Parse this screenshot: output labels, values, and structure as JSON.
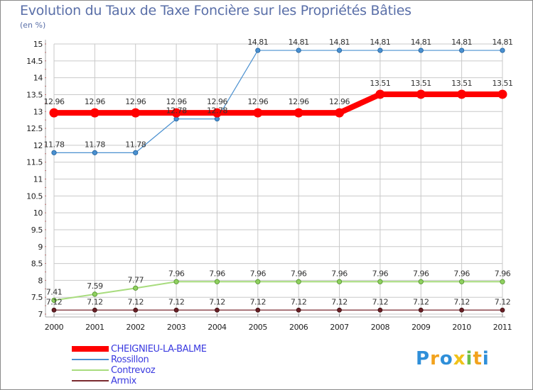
{
  "title": "Evolution du Taux de Taxe Foncière sur les Propriétés Bâties",
  "unit": "(en %)",
  "logo": {
    "text": "Proxiti",
    "colors": [
      "#2f8fd9",
      "#f2a21d",
      "#2f8fd9",
      "#f0c21a",
      "#6cc04a",
      "#f2a21d",
      "#2f8fd9"
    ]
  },
  "colors": {
    "grid": "#c9c9c9",
    "axis": "#aaaaaa",
    "minor_tick": "#d64646"
  },
  "chart_data": {
    "type": "line",
    "title": "Evolution du Taux de Taxe Foncière sur les Propriétés Bâties",
    "ylabel": "(en %)",
    "xlabel": "",
    "x": [
      "2000",
      "2001",
      "2002",
      "2003",
      "2004",
      "2005",
      "2006",
      "2007",
      "2008",
      "2009",
      "2010",
      "2011"
    ],
    "ylim": [
      7,
      15
    ],
    "yticks": [
      "7",
      "7.5",
      "8",
      "8.5",
      "9",
      "9.5",
      "10",
      "10.5",
      "11",
      "11.5",
      "12",
      "12.5",
      "13",
      "13.5",
      "14",
      "14.5",
      "15"
    ],
    "grid": true,
    "legend_position": "bottom-left",
    "series": [
      {
        "name": "CHEIGNIEU-LA-BALME",
        "color": "#ff0000",
        "values": [
          12.96,
          12.96,
          12.96,
          12.96,
          12.96,
          12.96,
          12.96,
          12.96,
          13.51,
          13.51,
          13.51,
          13.51
        ],
        "labels": [
          "12.96",
          "12.96",
          "12.96",
          "12.96",
          "12.96",
          "12.96",
          "12.96",
          "12.96",
          "13.51",
          "13.51",
          "13.51",
          "13.51"
        ]
      },
      {
        "name": "Rossillon",
        "color": "#4a90d0",
        "values": [
          11.78,
          11.78,
          11.78,
          12.78,
          12.78,
          14.81,
          14.81,
          14.81,
          14.81,
          14.81,
          14.81,
          14.81
        ],
        "labels": [
          "11.78",
          "11.78",
          "11.78",
          "12.78",
          "12.78",
          "14.81",
          "14.81",
          "14.81",
          "14.81",
          "14.81",
          "14.81",
          "14.81"
        ]
      },
      {
        "name": "Contrevoz",
        "color": "#8fd060",
        "values": [
          7.41,
          7.59,
          7.77,
          7.96,
          7.96,
          7.96,
          7.96,
          7.96,
          7.96,
          7.96,
          7.96,
          7.96
        ],
        "labels": [
          "7.41",
          "7.59",
          "7.77",
          "7.96",
          "7.96",
          "7.96",
          "7.96",
          "7.96",
          "7.96",
          "7.96",
          "7.96",
          "7.96"
        ]
      },
      {
        "name": "Armix",
        "color": "#7a2a30",
        "values": [
          7.12,
          7.12,
          7.12,
          7.12,
          7.12,
          7.12,
          7.12,
          7.12,
          7.12,
          7.12,
          7.12,
          7.12
        ],
        "labels": [
          "7.12",
          "7.12",
          "7.12",
          "7.12",
          "7.12",
          "7.12",
          "7.12",
          "7.12",
          "7.12",
          "7.12",
          "7.12",
          "7.12"
        ]
      }
    ]
  }
}
